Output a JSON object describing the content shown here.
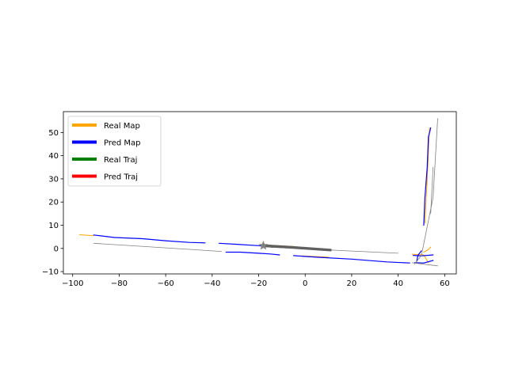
{
  "chart_data": {
    "type": "line",
    "title": "",
    "xlabel": "",
    "ylabel": "",
    "xlim": [
      -104,
      65
    ],
    "ylim": [
      -11,
      59
    ],
    "xticks": [
      -100,
      -80,
      -60,
      -40,
      -20,
      0,
      20,
      40,
      60
    ],
    "yticks": [
      -10,
      0,
      10,
      20,
      30,
      40,
      50
    ],
    "grid": false,
    "legend_position": "upper-left",
    "legend": [
      {
        "label": "Real Map",
        "color": "#ffa500"
      },
      {
        "label": "Pred Map",
        "color": "#0000ff"
      },
      {
        "label": "Real Traj",
        "color": "#008000"
      },
      {
        "label": "Pred Traj",
        "color": "#ff0000"
      }
    ],
    "series": [
      {
        "color": "#ffa500",
        "width": 1,
        "points": [
          [
            -97,
            5.9
          ],
          [
            -91,
            5.5
          ]
        ]
      },
      {
        "color": "#ffa500",
        "width": 1,
        "points": [
          [
            -17,
            1.5
          ],
          [
            -5,
            0.8
          ]
        ]
      },
      {
        "color": "#ffa500",
        "width": 1,
        "points": [
          [
            -2,
            -3.2
          ],
          [
            10,
            -3.8
          ]
        ]
      },
      {
        "color": "#ffa500",
        "width": 1,
        "points": [
          [
            46,
            -2.5
          ],
          [
            51,
            -2.8
          ],
          [
            53,
            -6.2
          ]
        ]
      },
      {
        "color": "#ffa500",
        "width": 1,
        "points": [
          [
            51,
            -1.6
          ],
          [
            53,
            -0.5
          ],
          [
            54,
            0.6
          ]
        ]
      },
      {
        "color": "#ffa500",
        "width": 1,
        "points": [
          [
            51.5,
            11
          ],
          [
            52.5,
            30
          ],
          [
            53.5,
            52
          ]
        ]
      },
      {
        "color": "#0000ff",
        "width": 1.2,
        "points": [
          [
            -91,
            5.8
          ],
          [
            -82,
            4.7
          ],
          [
            -70,
            4.2
          ],
          [
            -60,
            3.3
          ],
          [
            -50,
            2.6
          ],
          [
            -43,
            2.4
          ]
        ]
      },
      {
        "color": "#0000ff",
        "width": 1.2,
        "points": [
          [
            -37,
            2.2
          ],
          [
            -30,
            1.8
          ],
          [
            -20,
            1.2
          ],
          [
            -14,
            0.5
          ]
        ]
      },
      {
        "color": "#0000ff",
        "width": 1.2,
        "points": [
          [
            -34,
            -1.6
          ],
          [
            -28,
            -1.6
          ],
          [
            -20,
            -2.1
          ],
          [
            -15,
            -2.4
          ],
          [
            -11,
            -2.8
          ]
        ]
      },
      {
        "color": "#0000ff",
        "width": 1.2,
        "points": [
          [
            -5,
            -3.1
          ],
          [
            5,
            -3.8
          ],
          [
            20,
            -4.6
          ],
          [
            35,
            -5.8
          ],
          [
            45,
            -6.3
          ]
        ]
      },
      {
        "color": "#0000ff",
        "width": 1.2,
        "points": [
          [
            48,
            -5.5
          ],
          [
            48.5,
            -3
          ],
          [
            50,
            -1
          ]
        ]
      },
      {
        "color": "#0000ff",
        "width": 1.2,
        "points": [
          [
            47,
            -6.2
          ],
          [
            51,
            -6.3
          ],
          [
            55,
            -5.2
          ]
        ]
      },
      {
        "color": "#0000ff",
        "width": 1.2,
        "points": [
          [
            46.5,
            -3
          ],
          [
            50,
            -3.2
          ],
          [
            55,
            -2.8
          ]
        ]
      },
      {
        "color": "#0000ff",
        "width": 1.2,
        "points": [
          [
            51,
            10
          ],
          [
            51.5,
            22
          ],
          [
            52.5,
            35
          ],
          [
            53,
            48
          ],
          [
            54,
            52
          ]
        ]
      },
      {
        "color": "#808080",
        "width": 0.8,
        "points": [
          [
            -91,
            2.2
          ],
          [
            -36,
            -1.3
          ]
        ]
      },
      {
        "color": "#808080",
        "width": 0.8,
        "points": [
          [
            -17,
            0.6
          ],
          [
            40,
            -2.1
          ]
        ]
      },
      {
        "color": "#808080",
        "width": 0.8,
        "points": [
          [
            46,
            -6.2
          ],
          [
            57,
            -7.5
          ]
        ]
      },
      {
        "color": "#808080",
        "width": 0.8,
        "points": [
          [
            47,
            -6.8
          ],
          [
            50,
            -3
          ],
          [
            55,
            22
          ],
          [
            57,
            56
          ]
        ]
      },
      {
        "color": "#808080",
        "width": 0.8,
        "points": [
          [
            54,
            15
          ],
          [
            55,
            35
          ]
        ]
      },
      {
        "color": "#606060",
        "width": 2.2,
        "points": [
          [
            -18,
            1.4
          ],
          [
            -5,
            0.6
          ],
          [
            11,
            -0.5
          ]
        ]
      },
      {
        "color": "#606060",
        "width": 2.2,
        "points": [
          [
            -18,
            1.0
          ],
          [
            -5,
            0.2
          ],
          [
            11,
            -0.9
          ]
        ]
      }
    ],
    "marker": {
      "shape": "star",
      "x": -18,
      "y": 1.2,
      "color": "#808080"
    }
  }
}
